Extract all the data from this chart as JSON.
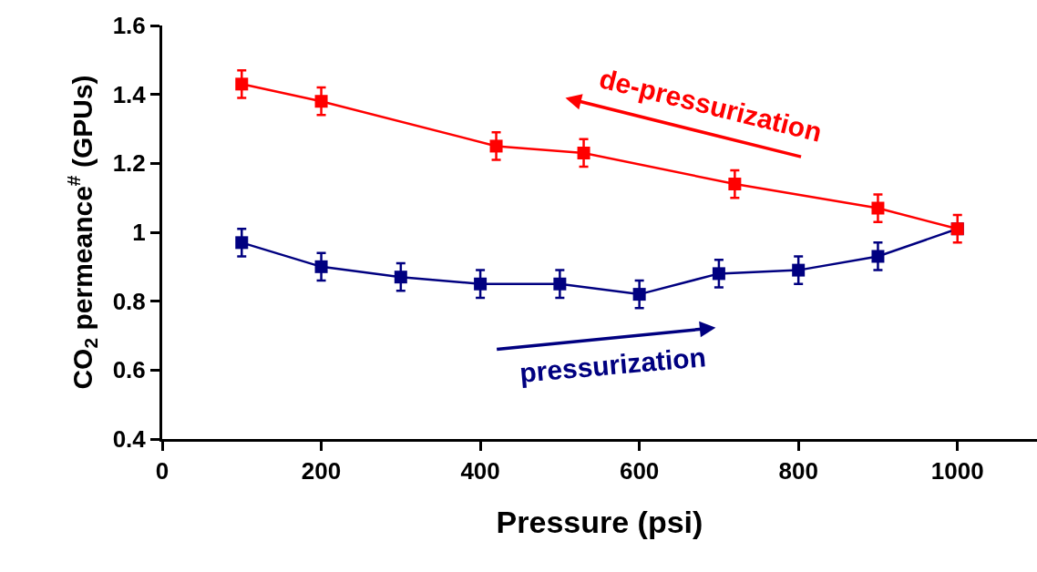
{
  "chart_data": {
    "type": "line",
    "xlabel": "Pressure (psi)",
    "ylabel": "CO$_{2}$ permeance$^{#}$ (GPUs)",
    "series": [
      {
        "color": "#000080",
        "x": [
          100,
          200,
          300,
          400,
          500,
          600,
          700,
          800,
          900,
          1000
        ],
        "values": [
          0.97,
          0.9,
          0.87,
          0.85,
          0.85,
          0.82,
          0.88,
          0.89,
          0.93,
          1.01
        ],
        "errors": [
          0.04,
          0.04,
          0.04,
          0.04,
          0.04,
          0.04,
          0.04,
          0.04,
          0.04,
          null
        ]
      },
      {
        "color": "#ff0000",
        "x": [
          100,
          200,
          420,
          530,
          720,
          900,
          1000
        ],
        "values": [
          1.43,
          1.38,
          1.25,
          1.23,
          1.14,
          1.07,
          1.01
        ],
        "errors": [
          0.04,
          0.04,
          0.04,
          0.04,
          0.04,
          0.04,
          0.04
        ]
      }
    ],
    "annotations": [
      "de-pressurization",
      "pressurization"
    ],
    "xlim": [
      0,
      1100
    ],
    "xticks": [
      0,
      200,
      400,
      600,
      800,
      1000
    ],
    "ylim": [
      0.4,
      1.6
    ],
    "yticks": [
      0.4,
      0.6,
      0.8,
      1,
      1.2,
      1.4,
      1.6
    ],
    "marker": "square",
    "line_style": "solid"
  }
}
